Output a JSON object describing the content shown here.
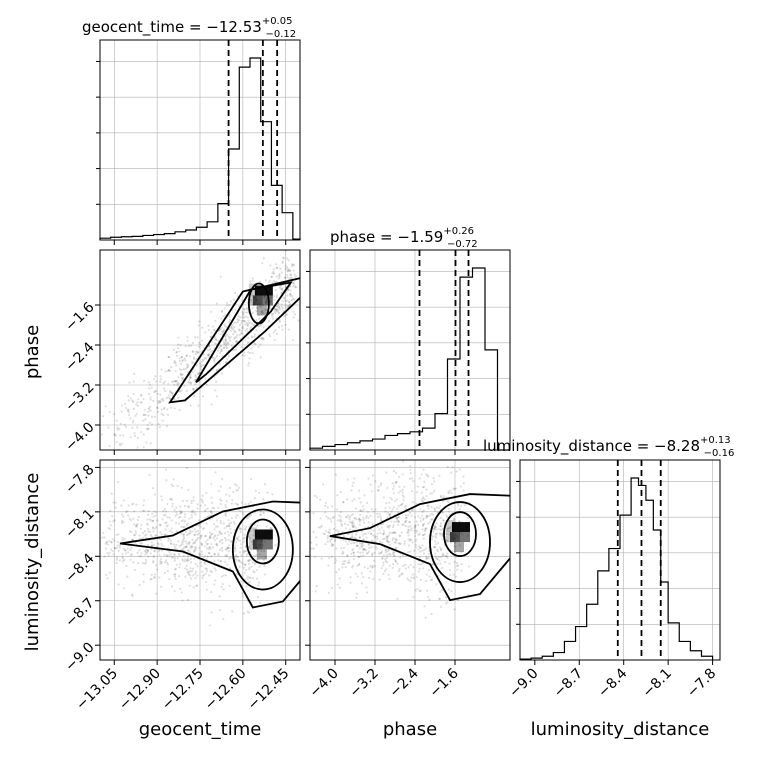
{
  "chart_data": {
    "type": "corner",
    "parameters": [
      {
        "name": "geocent_time",
        "xlabel": "geocent_time",
        "title_prefix": "geocent_time = ",
        "median": "−12.53",
        "upper": "+0.05",
        "lower": "−0.12",
        "range": [
          -13.1,
          -12.4
        ],
        "ticks": [
          -13.05,
          -12.9,
          -12.75,
          -12.6,
          -12.45
        ],
        "tick_labels": [
          "−13.05",
          "−12.90",
          "−12.75",
          "−12.60",
          "−12.45"
        ],
        "quantile_lines": [
          -12.65,
          -12.53,
          -12.48
        ],
        "hist_bins": [
          -13.1,
          -13.0625,
          -13.025,
          -12.9875,
          -12.95,
          -12.9125,
          -12.875,
          -12.8375,
          -12.8,
          -12.7625,
          -12.725,
          -12.6875,
          -12.65,
          -12.6125,
          -12.575,
          -12.5375,
          -12.5,
          -12.4625,
          -12.425,
          -12.4
        ],
        "hist_counts": [
          1,
          1.5,
          1.8,
          2,
          2.5,
          3,
          3.5,
          4.5,
          5.5,
          7,
          10,
          20,
          50,
          95,
          100,
          65,
          30,
          15,
          0.5
        ]
      },
      {
        "name": "phase",
        "xlabel": "phase",
        "ylabel": "phase",
        "title_prefix": "phase = ",
        "median": "−1.59",
        "upper": "+0.26",
        "lower": "−0.72",
        "range": [
          -4.5,
          -0.5
        ],
        "ticks": [
          -4.0,
          -3.2,
          -2.4,
          -1.6
        ],
        "tick_labels": [
          "−4.0",
          "−3.2",
          "−2.4",
          "−1.6"
        ],
        "quantile_lines": [
          -2.31,
          -1.59,
          -1.33
        ],
        "hist_bins": [
          -4.5,
          -4.25,
          -4.0,
          -3.75,
          -3.5,
          -3.25,
          -3.0,
          -2.75,
          -2.5,
          -2.25,
          -2.0,
          -1.75,
          -1.5,
          -1.25,
          -1.0,
          -0.75,
          -0.5
        ],
        "hist_counts": [
          1,
          2,
          3,
          4,
          5,
          6,
          8,
          9,
          10,
          12,
          20,
          50,
          95,
          100,
          55,
          0
        ]
      },
      {
        "name": "luminosity_distance",
        "xlabel": "luminosity_distance",
        "ylabel": "luminosity_distance",
        "title_prefix": "luminosity_distance = ",
        "median": "−8.28",
        "upper": "+0.13",
        "lower": "−0.16",
        "range": [
          -9.1,
          -7.75
        ],
        "ticks": [
          -9.0,
          -8.7,
          -8.4,
          -8.1,
          -7.8
        ],
        "tick_labels": [
          "−9.0",
          "−8.7",
          "−8.4",
          "−8.1",
          "−7.8"
        ],
        "quantile_lines": [
          -8.44,
          -8.28,
          -8.15
        ],
        "hist_bins": [
          -9.1,
          -9.025,
          -8.95,
          -8.875,
          -8.8,
          -8.725,
          -8.65,
          -8.575,
          -8.5,
          -8.425,
          -8.35,
          -8.3,
          -8.25,
          -8.2,
          -8.15,
          -8.1,
          -8.025,
          -7.95,
          -7.875,
          -7.8
        ],
        "hist_counts": [
          0.5,
          1,
          2,
          4,
          10,
          18,
          30,
          48,
          60,
          78,
          98,
          94,
          86,
          70,
          42,
          20,
          10,
          5,
          2
        ]
      }
    ],
    "joint_2d": [
      {
        "x": "geocent_time",
        "y": "phase",
        "trend": {
          "x0": -13.08,
          "y0": -4.3,
          "x1": -12.42,
          "y1": -1.15
        },
        "peak": {
          "x": -12.53,
          "y": -1.45
        },
        "sample_spread_y": 0.35
      },
      {
        "x": "geocent_time",
        "y": "luminosity_distance",
        "peak": {
          "x": -12.53,
          "y": -8.3
        },
        "sample_spread_y": 0.22
      },
      {
        "x": "phase",
        "y": "luminosity_distance",
        "peak": {
          "x": -1.5,
          "y": -8.25
        },
        "sample_spread_y": 0.22
      }
    ],
    "grid": true
  }
}
